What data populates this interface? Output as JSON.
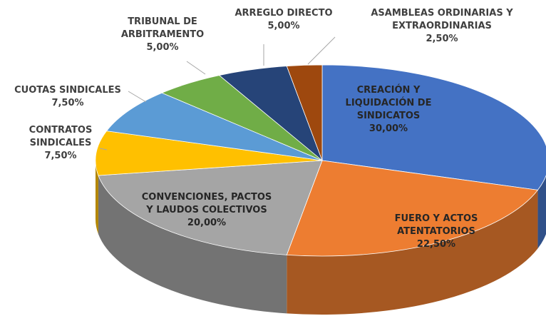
{
  "chart_data": {
    "type": "pie3d",
    "categories": [
      "CREACIÓN Y LIQUIDACIÓN DE SINDICATOS",
      "FUERO Y ACTOS ATENTATORIOS",
      "CONVENCIONES, PACTOS Y LAUDOS COLECTIVOS",
      "CONTRATOS SINDICALES",
      "CUOTAS SINDICALES",
      "TRIBUNAL DE ARBITRAMENTO",
      "ARREGLO DIRECTO",
      "ASAMBLEAS ORDINARIAS Y EXTRAORDINARIAS"
    ],
    "values": [
      30,
      22.5,
      20,
      7.5,
      7.5,
      5,
      5,
      2.5
    ],
    "value_labels": [
      "30,00%",
      "22,50%",
      "20,00%",
      "7,50%",
      "7,50%",
      "5,00%",
      "5,00%",
      "2,50%"
    ],
    "colors": [
      "#4472c4",
      "#ed7d31",
      "#a5a5a5",
      "#ffc000",
      "#5b9bd5",
      "#70ad47",
      "#264478",
      "#9e480e"
    ]
  }
}
